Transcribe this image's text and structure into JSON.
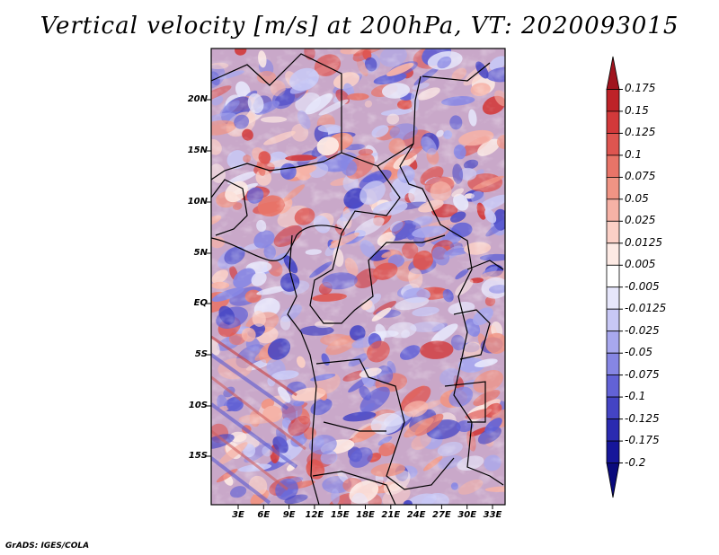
{
  "title": "Vertical velocity [m/s] at 200hPa, VT: 2020093015",
  "credit": "GrADS: IGES/COLA",
  "map": {
    "lat_labels": [
      "20N",
      "15N",
      "10N",
      "5N",
      "EQ",
      "5S",
      "10S",
      "15S"
    ],
    "lon_labels": [
      "3E",
      "6E",
      "9E",
      "12E",
      "15E",
      "18E",
      "21E",
      "24E",
      "27E",
      "30E",
      "33E"
    ]
  },
  "colorbar": {
    "levels": [
      "0.175",
      "0.15",
      "0.125",
      "0.1",
      "0.075",
      "0.05",
      "0.025",
      "0.0125",
      "0.005",
      "-0.005",
      "-0.0125",
      "-0.025",
      "-0.05",
      "-0.075",
      "-0.1",
      "-0.125",
      "-0.175",
      "-0.2"
    ],
    "colors": [
      "#a0141e",
      "#be2328",
      "#d2393a",
      "#de5550",
      "#e87468",
      "#f09484",
      "#f6b2a6",
      "#fbd0c6",
      "#fdeae4",
      "#ffffff",
      "#e6e6fb",
      "#c8c8f5",
      "#a8a8ee",
      "#8686e4",
      "#6262d6",
      "#4444c4",
      "#2a2ab0",
      "#16169a",
      "#0a0a7c"
    ]
  }
}
